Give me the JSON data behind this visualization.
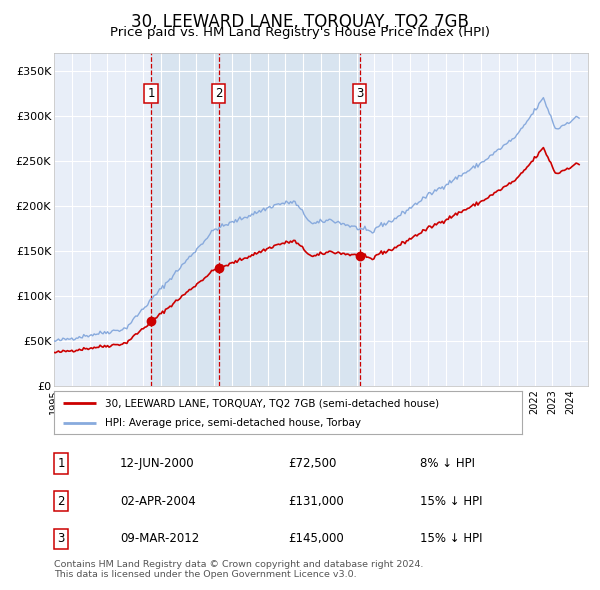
{
  "title": "30, LEEWARD LANE, TORQUAY, TQ2 7GB",
  "subtitle": "Price paid vs. HM Land Registry's House Price Index (HPI)",
  "title_fontsize": 12,
  "subtitle_fontsize": 9.5,
  "background_color": "#ffffff",
  "plot_bg_color": "#e8eef8",
  "grid_color": "#ffffff",
  "red_line_color": "#cc0000",
  "blue_line_color": "#88aadd",
  "sale_dot_color": "#cc0000",
  "dashed_line_color": "#cc0000",
  "shade_color": "#d8e4f0",
  "ylim": [
    0,
    370000
  ],
  "yticks": [
    0,
    50000,
    100000,
    150000,
    200000,
    250000,
    300000,
    350000
  ],
  "ytick_labels": [
    "£0",
    "£50K",
    "£100K",
    "£150K",
    "£200K",
    "£250K",
    "£300K",
    "£350K"
  ],
  "sales": [
    {
      "num": 1,
      "date": "12-JUN-2000",
      "price": 72500,
      "year": 2000.45,
      "pct": "8%",
      "direction": "↓"
    },
    {
      "num": 2,
      "date": "02-APR-2004",
      "price": 131000,
      "year": 2004.25,
      "pct": "15%",
      "direction": "↓"
    },
    {
      "num": 3,
      "date": "09-MAR-2012",
      "price": 145000,
      "year": 2012.18,
      "pct": "15%",
      "direction": "↓"
    }
  ],
  "legend_label_red": "30, LEEWARD LANE, TORQUAY, TQ2 7GB (semi-detached house)",
  "legend_label_blue": "HPI: Average price, semi-detached house, Torbay",
  "footer_text": "Contains HM Land Registry data © Crown copyright and database right 2024.\nThis data is licensed under the Open Government Licence v3.0.",
  "xmin": 1995,
  "xmax": 2025
}
